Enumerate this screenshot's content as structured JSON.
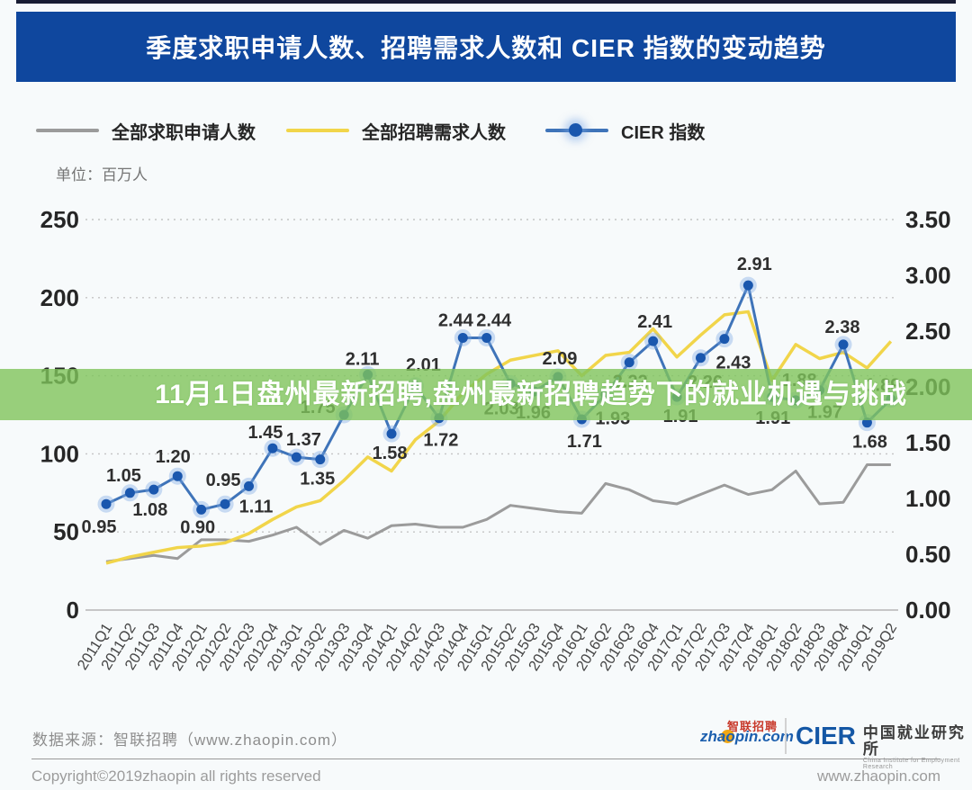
{
  "header": {
    "title": "季度求职申请人数、招聘需求人数和 CIER 指数的变动趋势"
  },
  "legend": [
    {
      "label": "全部求职申请人数",
      "color": "#9b9b9b",
      "marker": "line"
    },
    {
      "label": "全部招聘需求人数",
      "color": "#f1d54a",
      "marker": "line"
    },
    {
      "label": "CIER 指数",
      "color": "#3f74b9",
      "point_color": "#1a57ae",
      "marker": "line-dot"
    }
  ],
  "unit_label": "单位：百万人",
  "overlay_banner": {
    "text": "11月1日盘州最新招聘,盘州最新招聘趋势下的就业机遇与挑战",
    "text_color": "#ffffff",
    "band_color": "rgba(127,196,91,0.8)"
  },
  "chart_data": {
    "type": "line",
    "title": "季度求职申请人数、招聘需求人数和 CIER 指数的变动趋势",
    "unit": "百万人",
    "grid": "horizontal dotted (left-axis ticks)",
    "legend_position": "top",
    "x_categories": [
      "2011Q1",
      "2011Q2",
      "2011Q3",
      "2011Q4",
      "2012Q1",
      "2012Q2",
      "2012Q3",
      "2012Q4",
      "2013Q1",
      "2013Q2",
      "2013Q3",
      "2013Q4",
      "2014Q1",
      "2014Q2",
      "2014Q3",
      "2014Q4",
      "2015Q1",
      "2015Q2",
      "2015Q3",
      "2015Q4",
      "2016Q1",
      "2016Q2",
      "2016Q3",
      "2016Q4",
      "2017Q1",
      "2017Q2",
      "2017Q3",
      "2017Q4",
      "2018Q1",
      "2018Q2",
      "2018Q3",
      "2018Q4",
      "2019Q1",
      "2019Q2"
    ],
    "left_axis": {
      "ticks": [
        0,
        50,
        100,
        150,
        200,
        250
      ],
      "range": [
        0,
        250
      ],
      "applies_to": "人数（百万人）"
    },
    "right_axis": {
      "ticks": [
        "0.00",
        "0.50",
        "1.00",
        "1.50",
        "2.00",
        "2.50",
        "3.00",
        "3.50"
      ],
      "range": [
        0,
        3.5
      ],
      "applies_to": "CIER 指数"
    },
    "series": [
      {
        "name": "全部求职申请人数",
        "axis": "left",
        "color": "#9b9b9b",
        "values": [
          31,
          33,
          35,
          33,
          45,
          45,
          44,
          48,
          53,
          42,
          51,
          46,
          54,
          55,
          53,
          53,
          58,
          67,
          65,
          63,
          62,
          81,
          77,
          70,
          68,
          74,
          80,
          74,
          77,
          89,
          68,
          69,
          93,
          93
        ],
        "values_estimated": true
      },
      {
        "name": "全部招聘需求人数",
        "axis": "left",
        "color": "#f1d54a",
        "values": [
          30,
          34,
          37,
          40,
          41,
          43,
          49,
          58,
          66,
          70,
          83,
          98,
          89,
          109,
          121,
          139,
          151,
          160,
          163,
          166,
          150,
          163,
          165,
          180,
          162,
          176,
          189,
          191,
          147,
          170,
          161,
          165,
          155,
          172
        ],
        "values_estimated": true
      },
      {
        "name": "CIER 指数",
        "axis": "right",
        "color": "#3f74b9",
        "point_color": "#1a57ae",
        "point_labels_visible": true,
        "values": [
          0.95,
          1.05,
          1.08,
          1.2,
          0.9,
          0.95,
          1.11,
          1.45,
          1.37,
          1.35,
          1.75,
          2.11,
          1.58,
          2.01,
          1.72,
          2.44,
          2.44,
          2.03,
          1.96,
          2.09,
          1.71,
          1.93,
          2.22,
          2.41,
          1.91,
          2.26,
          2.43,
          2.91,
          1.91,
          1.88,
          1.97,
          2.38,
          1.68,
          1.89
        ],
        "label_offsets": [
          [
            -8,
            25
          ],
          [
            -7,
            -20
          ],
          [
            -4,
            22
          ],
          [
            -5,
            -22
          ],
          [
            -4,
            19
          ],
          [
            -2,
            -27
          ],
          [
            8,
            22
          ],
          [
            -8,
            -18
          ],
          [
            8,
            -20
          ],
          [
            -3,
            21
          ],
          [
            -29,
            -9
          ],
          [
            -6,
            -18
          ],
          [
            -2,
            21
          ],
          [
            9,
            -24
          ],
          [
            2,
            24
          ],
          [
            -8,
            -20
          ],
          [
            8,
            -20
          ],
          [
            -10,
            27
          ],
          [
            -1,
            23
          ],
          [
            2,
            -21
          ],
          [
            3,
            24
          ],
          [
            8,
            26
          ],
          [
            1,
            21
          ],
          [
            2,
            -22
          ],
          [
            4,
            21
          ],
          [
            5,
            26
          ],
          [
            10,
            26
          ],
          [
            7,
            -24
          ],
          [
            1,
            23
          ],
          [
            4,
            -23
          ],
          [
            6,
            24
          ],
          [
            -1,
            -20
          ],
          [
            3,
            21
          ],
          [
            -9,
            -16
          ]
        ]
      }
    ]
  },
  "footer": {
    "source": "数据来源：智联招聘（www.zhaopin.com）",
    "copyright": "Copyright©2019zhaopin all rights reserved",
    "website": "www.zhaopin.com",
    "zhaopin_logo": {
      "cn": "智联招聘",
      "en": "zhaopin.com"
    },
    "cier_logo": {
      "abbr": "CIER",
      "cn": "中国就业研究所",
      "en": "China Institute for Employment Research"
    }
  }
}
